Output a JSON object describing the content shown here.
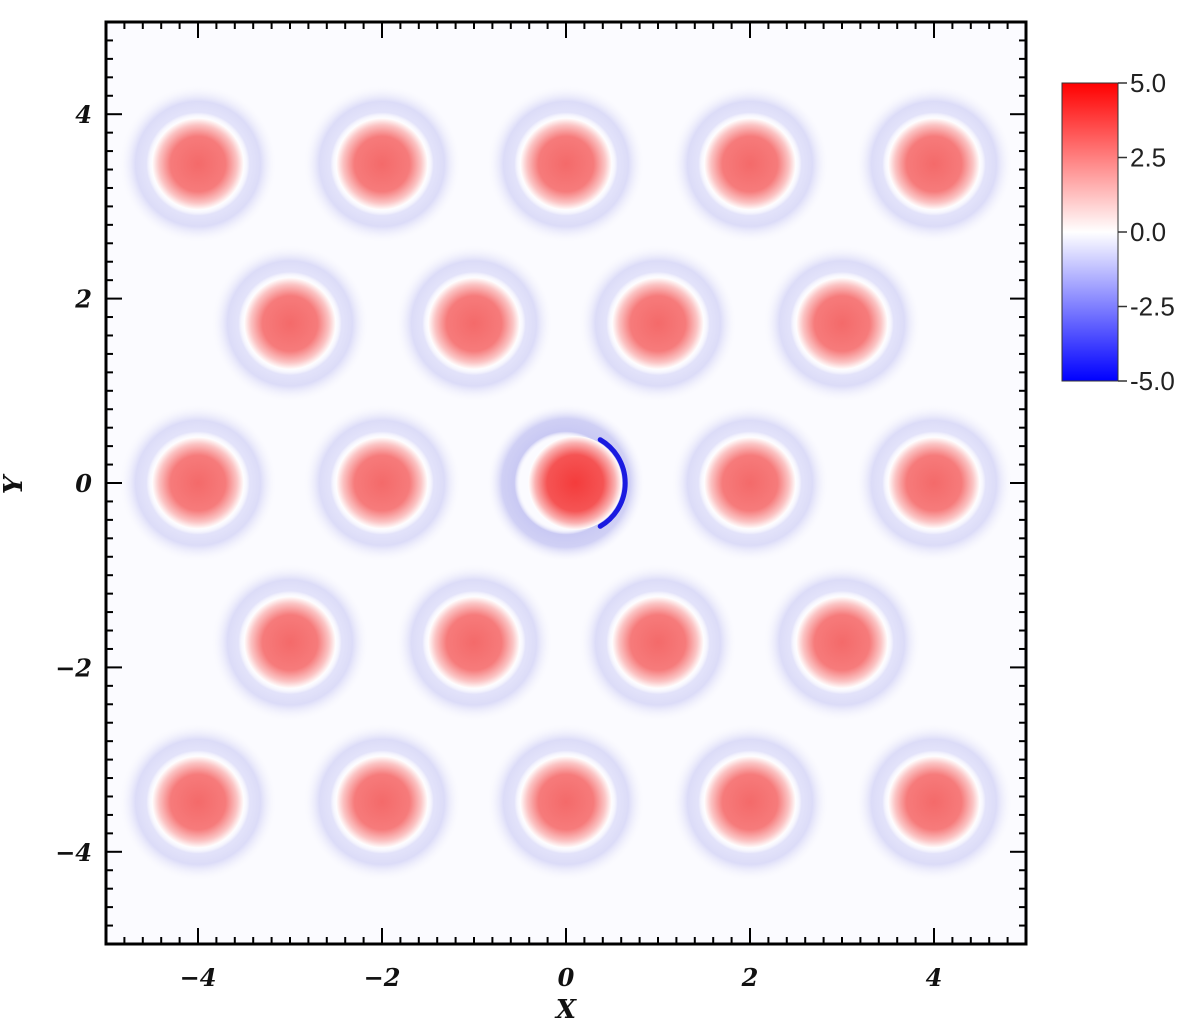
{
  "chart_data": {
    "type": "heatmap",
    "title": "",
    "xlabel": "X",
    "ylabel": "Y",
    "xlim": [
      -5,
      5
    ],
    "ylim": [
      -5,
      5
    ],
    "x_ticks": [
      -4,
      -2,
      0,
      2,
      4
    ],
    "y_ticks": [
      -4,
      -2,
      0,
      2,
      4
    ],
    "x_tick_labels": [
      "−4",
      "−2",
      "0",
      "2",
      "4"
    ],
    "y_tick_labels": [
      "−4",
      "−2",
      "0",
      "2",
      "4"
    ],
    "grid": false,
    "colorbar": {
      "placement": "right",
      "min": -5.0,
      "max": 5.0,
      "ticks": [
        5.0,
        2.5,
        0.0,
        -2.5,
        -5.0
      ],
      "tick_labels": [
        "5.0",
        "2.5",
        "0.0",
        "-2.5",
        "-5.0"
      ],
      "colors": {
        "max": "#ff0000",
        "mid": "#ffffff",
        "min": "#0000ff"
      }
    },
    "peaks": [
      {
        "x": -4,
        "y": 3.46,
        "value": 2.2
      },
      {
        "x": -2,
        "y": 3.46,
        "value": 2.2
      },
      {
        "x": 0,
        "y": 3.46,
        "value": 2.2
      },
      {
        "x": 2,
        "y": 3.46,
        "value": 2.2
      },
      {
        "x": 4,
        "y": 3.46,
        "value": 2.2
      },
      {
        "x": -3,
        "y": 1.73,
        "value": 2.2
      },
      {
        "x": -1,
        "y": 1.73,
        "value": 2.2
      },
      {
        "x": 1,
        "y": 1.73,
        "value": 2.2
      },
      {
        "x": 3,
        "y": 1.73,
        "value": 2.2
      },
      {
        "x": -4,
        "y": 0,
        "value": 2.2
      },
      {
        "x": -2,
        "y": 0,
        "value": 2.2
      },
      {
        "x": 0.1,
        "y": 0,
        "value": 2.9
      },
      {
        "x": 2,
        "y": 0,
        "value": 2.2
      },
      {
        "x": 4,
        "y": 0,
        "value": 2.2
      },
      {
        "x": -3,
        "y": -1.73,
        "value": 2.2
      },
      {
        "x": -1,
        "y": -1.73,
        "value": 2.2
      },
      {
        "x": 1,
        "y": -1.73,
        "value": 2.2
      },
      {
        "x": 3,
        "y": -1.73,
        "value": 2.2
      },
      {
        "x": -4,
        "y": -3.46,
        "value": 2.2
      },
      {
        "x": -2,
        "y": -3.46,
        "value": 2.2
      },
      {
        "x": 0,
        "y": -3.46,
        "value": 2.2
      },
      {
        "x": 2,
        "y": -3.46,
        "value": 2.2
      },
      {
        "x": 4,
        "y": -3.46,
        "value": 2.2
      }
    ],
    "core_radius": 0.5,
    "halo": {
      "inner_radius": 0.5,
      "outer_radius": 0.85,
      "value": -0.6
    },
    "highlight": {
      "x": 0,
      "y": 0,
      "halo_value": -1.0,
      "edge_value": -4.5,
      "edge_side": "right"
    }
  }
}
